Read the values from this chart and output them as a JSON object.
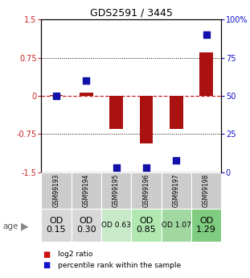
{
  "title": "GDS2591 / 3445",
  "samples": [
    "GSM99193",
    "GSM99194",
    "GSM99195",
    "GSM99196",
    "GSM99197",
    "GSM99198"
  ],
  "log2_ratio": [
    0.02,
    0.07,
    -0.65,
    -0.93,
    -0.65,
    0.85
  ],
  "percentile_rank": [
    50,
    60,
    3,
    3,
    8,
    90
  ],
  "ylim_left": [
    -1.5,
    1.5
  ],
  "ylim_right": [
    0,
    100
  ],
  "yticks_left": [
    -1.5,
    -0.75,
    0,
    0.75,
    1.5
  ],
  "yticks_right": [
    0,
    25,
    50,
    75,
    100
  ],
  "ytick_labels_left": [
    "-1.5",
    "-0.75",
    "0",
    "0.75",
    "1.5"
  ],
  "ytick_labels_right": [
    "0",
    "25",
    "50",
    "75",
    "100%"
  ],
  "bar_color": "#aa1111",
  "dot_color": "#1111aa",
  "hline_color": "#cc2222",
  "grid_color": "#000000",
  "age_labels": [
    "OD\n0.15",
    "OD\n0.30",
    "OD 0.63",
    "OD\n0.85",
    "OD 1.07",
    "OD\n1.29"
  ],
  "age_bg_colors": [
    "#d8d8d8",
    "#d8d8d8",
    "#c8eac8",
    "#b0e8b0",
    "#a0d8a0",
    "#80cc80"
  ],
  "age_label_fontsize": [
    8,
    8,
    6.5,
    8,
    6.5,
    8
  ],
  "gsm_bg_color": "#cccccc",
  "bar_width": 0.45,
  "dot_size": 28,
  "legend_bar_color": "#cc1111",
  "legend_dot_color": "#1111cc"
}
